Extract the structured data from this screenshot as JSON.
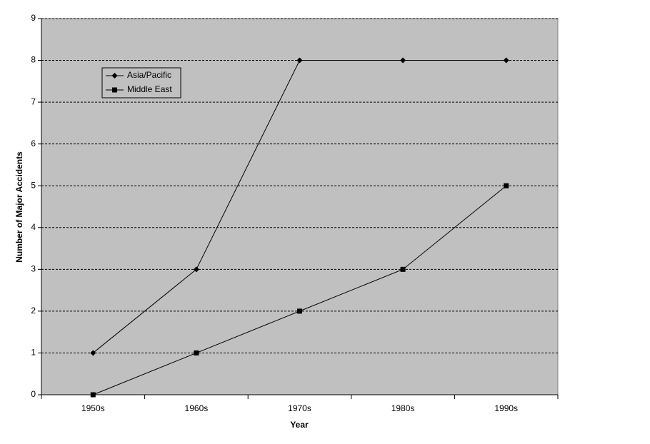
{
  "chart_data": {
    "type": "line",
    "x_label": "Year",
    "y_label": "Number of Major Accidents",
    "categories": [
      "1950s",
      "1960s",
      "1970s",
      "1980s",
      "1990s"
    ],
    "series": [
      {
        "name": "Asia/Pacific",
        "color": "#000000",
        "marker": "diamond",
        "values": [
          1,
          3,
          8,
          8,
          8
        ]
      },
      {
        "name": "Middle East",
        "color": "#000000",
        "marker": "square",
        "values": [
          0,
          1,
          2,
          3,
          5
        ]
      }
    ],
    "ylim": [
      0,
      9
    ],
    "yticks": [
      0,
      1,
      2,
      3,
      4,
      5,
      6,
      7,
      8,
      9
    ],
    "grid": true,
    "legend": "upper left",
    "background": "#c0c0c0"
  }
}
